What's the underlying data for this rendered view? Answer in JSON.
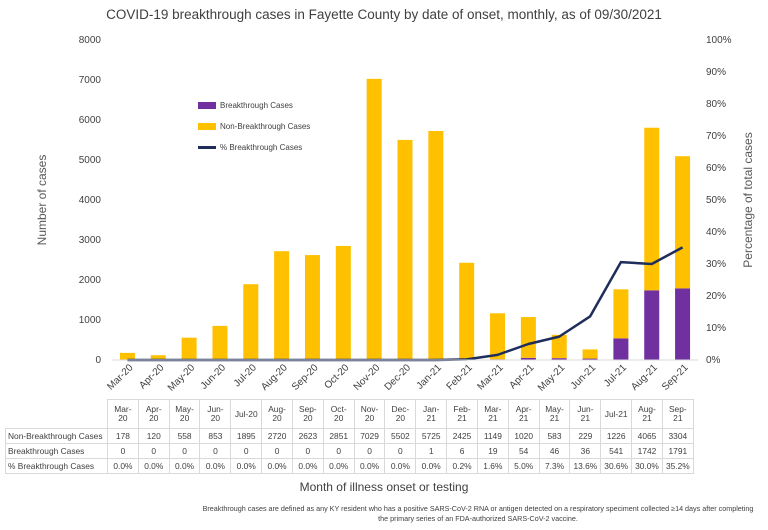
{
  "chart_data": {
    "type": "bar",
    "title": "COVID-19 breakthrough cases in Fayette County by date of onset, monthly, as of 09/30/2021",
    "xlabel": "Month of illness onset or testing",
    "ylabel": "Number of cases",
    "y2label": "Percentage of total cases",
    "ylim": [
      0,
      8000
    ],
    "y2lim": [
      0,
      100
    ],
    "yticks": [
      "0",
      "1000",
      "2000",
      "3000",
      "4000",
      "5000",
      "6000",
      "7000",
      "8000"
    ],
    "y2ticks": [
      "0%",
      "10%",
      "20%",
      "30%",
      "40%",
      "50%",
      "60%",
      "70%",
      "80%",
      "90%",
      "100%"
    ],
    "stacked": true,
    "legend_position": "upper-left",
    "categories": [
      "Mar-20",
      "Apr-20",
      "May-20",
      "Jun-20",
      "Jul-20",
      "Aug-20",
      "Sep-20",
      "Oct-20",
      "Nov-20",
      "Dec-20",
      "Jan-21",
      "Feb-21",
      "Mar-21",
      "Apr-21",
      "May-21",
      "Jun-21",
      "Jul-21",
      "Aug-21",
      "Sep-21"
    ],
    "series": [
      {
        "name": "Breakthrough Cases",
        "type": "bar",
        "color": "#7030a0",
        "values": [
          0,
          0,
          0,
          0,
          0,
          0,
          0,
          0,
          0,
          0,
          1,
          6,
          19,
          54,
          46,
          36,
          541,
          1742,
          1791
        ],
        "table_values": [
          "0",
          "0",
          "0",
          "0",
          "0",
          "0",
          "0",
          "0",
          "0",
          "0",
          "1",
          "6",
          "19",
          "54",
          "46",
          "36",
          "541",
          "1742",
          "1791"
        ]
      },
      {
        "name": "Non-Breakthrough Cases",
        "type": "bar",
        "color": "#ffc000",
        "values": [
          178,
          120,
          558,
          853,
          1895,
          2720,
          2623,
          2851,
          7029,
          5502,
          5725,
          2425,
          1149,
          1020,
          583,
          229,
          1226,
          4065,
          3304
        ],
        "table_values": [
          "178",
          "120",
          "558",
          "853",
          "1895",
          "2720",
          "2623",
          "2851",
          "7029",
          "5502",
          "5725",
          "2425",
          "1149",
          "1020",
          "583",
          "229",
          "1226",
          "4065",
          "3304"
        ]
      },
      {
        "name": "% Breakthrough Cases",
        "type": "line",
        "axis": "right",
        "color": "#1f2d5c",
        "values": [
          0,
          0,
          0,
          0,
          0,
          0,
          0,
          0,
          0,
          0,
          0,
          0.2,
          1.6,
          5.0,
          7.3,
          13.6,
          30.6,
          30.0,
          35.2
        ],
        "table_values": [
          "0.0%",
          "0.0%",
          "0.0%",
          "0.0%",
          "0.0%",
          "0.0%",
          "0.0%",
          "0.0%",
          "0.0%",
          "0.0%",
          "0.0%",
          "0.2%",
          "1.6%",
          "5.0%",
          "7.3%",
          "13.6%",
          "30.6%",
          "30.0%",
          "35.2%"
        ]
      }
    ],
    "table": {
      "row_labels": [
        "Non-Breakthrough Cases",
        "Breakthrough Cases",
        "% Breakthrough Cases"
      ],
      "header_top": [
        "Mar-",
        "Apr-",
        "May-",
        "Jun-",
        "Jul-20",
        "Aug-",
        "Sep-",
        "Oct-",
        "Nov-",
        "Dec-",
        "Jan-",
        "Feb-",
        "Mar-",
        "Apr-",
        "May-",
        "Jun-",
        "Jul-21",
        "Aug-",
        "Sep-"
      ],
      "header_bottom": [
        "20",
        "20",
        "20",
        "20",
        "",
        "20",
        "20",
        "20",
        "20",
        "20",
        "21",
        "21",
        "21",
        "21",
        "21",
        "21",
        "",
        "21",
        "21"
      ]
    },
    "footnote": "Breakthrough cases are defined as any KY resident who has a positive SARS-CoV-2 RNA or antigen detected on a respiratory speciment collected ≥14 days after completing the primary series of an FDA-authorized SARS-CoV-2 vaccine."
  }
}
